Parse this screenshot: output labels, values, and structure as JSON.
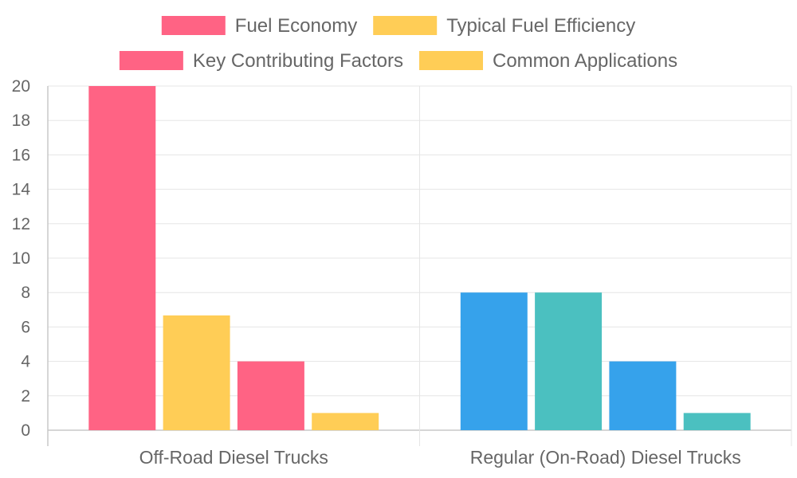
{
  "chart_data": {
    "type": "bar",
    "categories": [
      "Off-Road Diesel Trucks",
      "Regular (On-Road) Diesel Trucks"
    ],
    "series": [
      {
        "name": "Fuel Economy",
        "values": [
          20,
          8
        ]
      },
      {
        "name": "Typical Fuel Efficiency",
        "values": [
          6.67,
          8
        ]
      },
      {
        "name": "Key Contributing Factors",
        "values": [
          4,
          4
        ]
      },
      {
        "name": "Common Applications",
        "values": [
          1,
          1
        ]
      }
    ],
    "bar_colors": [
      [
        "#ff6384",
        "#36a2eb"
      ],
      [
        "#ffcd56",
        "#4bc0c0"
      ],
      [
        "#ff6384",
        "#36a2eb"
      ],
      [
        "#ffcd56",
        "#4bc0c0"
      ]
    ],
    "legend_colors": [
      "#ff6384",
      "#ffcd56",
      "#ff6384",
      "#ffcd56"
    ],
    "legend_position": "top",
    "ylim": [
      0,
      20
    ],
    "yticks": [
      0,
      2,
      4,
      6,
      8,
      10,
      12,
      14,
      16,
      18,
      20
    ],
    "grid": true,
    "title": "",
    "xlabel": "",
    "ylabel": ""
  }
}
